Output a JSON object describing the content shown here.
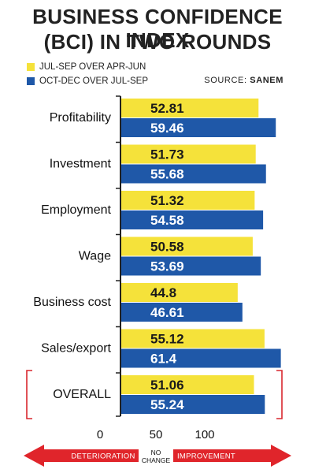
{
  "header": {
    "title_line1": "BUSINESS CONFIDENCE INDEX",
    "title_line2": "(BCI) IN TWO ROUNDS",
    "source_prefix": "SOURCE:",
    "source_name": "SANEM"
  },
  "colors": {
    "series1": "#f5e23a",
    "series2": "#1f58a8",
    "axis": "#222222",
    "bracket": "#d9272e",
    "arrow": "#e0252b"
  },
  "chart_data": {
    "type": "bar",
    "orientation": "horizontal",
    "title": "BUSINESS CONFIDENCE INDEX (BCI) IN TWO ROUNDS",
    "categories": [
      "Profitability",
      "Investment",
      "Employment",
      "Wage",
      "Business cost",
      "Sales/export",
      "OVERALL"
    ],
    "series": [
      {
        "name": "JUL-SEP OVER APR-JUN",
        "values": [
          52.81,
          51.73,
          51.32,
          50.58,
          44.8,
          55.12,
          51.06
        ],
        "labels": [
          "52.81",
          "51.73",
          "51.32",
          "50.58",
          "44.8",
          "55.12",
          "51.06"
        ]
      },
      {
        "name": "OCT-DEC OVER JUL-SEP",
        "values": [
          59.46,
          55.68,
          54.58,
          53.69,
          46.61,
          61.4,
          55.24
        ],
        "labels": [
          "59.46",
          "55.68",
          "54.58",
          "53.69",
          "46.61",
          "61.4",
          "55.24"
        ]
      }
    ],
    "xticks": [
      "0",
      "50",
      "100"
    ],
    "scale_labels": {
      "left": "DETERIORATION",
      "center_line1": "NO",
      "center_line2": "CHANGE",
      "right": "IMPROVEMENT"
    },
    "highlighted_category": "OVERALL",
    "legend_position": "top-left"
  }
}
